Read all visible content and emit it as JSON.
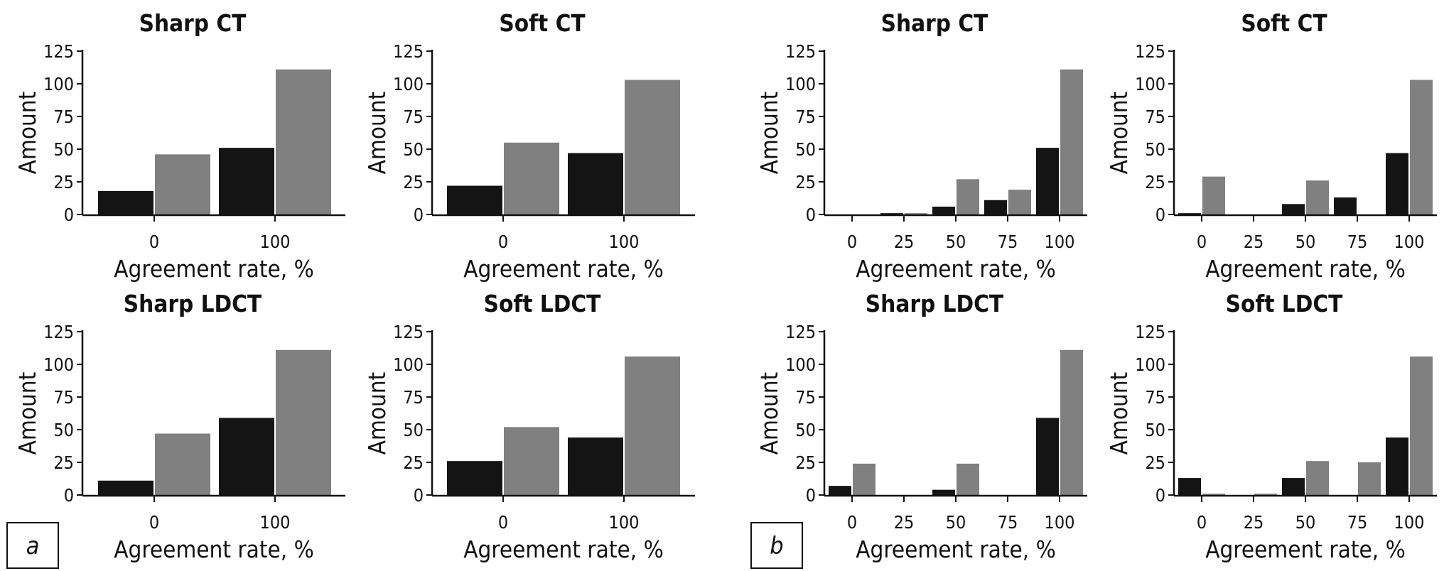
{
  "chart_data": [
    {
      "type": "bar",
      "title": "Sharp CT",
      "xlabel": "Agreement rate, %",
      "ylabel": "Amount",
      "categories": [
        "0",
        "100"
      ],
      "ylim": [
        0,
        125
      ],
      "yticks": [
        0,
        25,
        50,
        75,
        100,
        125
      ],
      "series": [
        {
          "color": "#141414",
          "values": [
            18,
            51
          ]
        },
        {
          "color": "#808080",
          "values": [
            46,
            111
          ]
        }
      ]
    },
    {
      "type": "bar",
      "title": "Soft CT",
      "xlabel": "Agreement rate, %",
      "ylabel": "Amount",
      "categories": [
        "0",
        "100"
      ],
      "ylim": [
        0,
        125
      ],
      "yticks": [
        0,
        25,
        50,
        75,
        100,
        125
      ],
      "series": [
        {
          "color": "#141414",
          "values": [
            22,
            47
          ]
        },
        {
          "color": "#808080",
          "values": [
            55,
            103
          ]
        }
      ]
    },
    {
      "type": "bar",
      "title": "Sharp CT",
      "xlabel": "Agreement rate, %",
      "ylabel": "Amount",
      "categories": [
        "0",
        "25",
        "50",
        "75",
        "100"
      ],
      "ylim": [
        0,
        125
      ],
      "yticks": [
        0,
        25,
        50,
        75,
        100,
        125
      ],
      "series": [
        {
          "color": "#141414",
          "values": [
            0,
            1,
            6,
            11,
            51
          ]
        },
        {
          "color": "#808080",
          "values": [
            0,
            1,
            27,
            19,
            111
          ]
        }
      ]
    },
    {
      "type": "bar",
      "title": "Soft CT",
      "xlabel": "Agreement rate, %",
      "ylabel": "Amount",
      "categories": [
        "0",
        "25",
        "50",
        "75",
        "100"
      ],
      "ylim": [
        0,
        125
      ],
      "yticks": [
        0,
        25,
        50,
        75,
        100,
        125
      ],
      "series": [
        {
          "color": "#141414",
          "values": [
            1,
            0,
            8,
            13,
            47
          ]
        },
        {
          "color": "#808080",
          "values": [
            29,
            0,
            26,
            0,
            103
          ]
        }
      ]
    },
    {
      "type": "bar",
      "title": "Sharp LDCT",
      "xlabel": "Agreement rate, %",
      "ylabel": "Amount",
      "categories": [
        "0",
        "100"
      ],
      "ylim": [
        0,
        125
      ],
      "yticks": [
        0,
        25,
        50,
        75,
        100,
        125
      ],
      "series": [
        {
          "color": "#141414",
          "values": [
            11,
            59
          ]
        },
        {
          "color": "#808080",
          "values": [
            47,
            111
          ]
        }
      ]
    },
    {
      "type": "bar",
      "title": "Soft LDCT",
      "xlabel": "Agreement rate, %",
      "ylabel": "Amount",
      "categories": [
        "0",
        "100"
      ],
      "ylim": [
        0,
        125
      ],
      "yticks": [
        0,
        25,
        50,
        75,
        100,
        125
      ],
      "series": [
        {
          "color": "#141414",
          "values": [
            26,
            44
          ]
        },
        {
          "color": "#808080",
          "values": [
            52,
            106
          ]
        }
      ]
    },
    {
      "type": "bar",
      "title": "Sharp LDCT",
      "xlabel": "Agreement rate, %",
      "ylabel": "Amount",
      "categories": [
        "0",
        "25",
        "50",
        "75",
        "100"
      ],
      "ylim": [
        0,
        125
      ],
      "yticks": [
        0,
        25,
        50,
        75,
        100,
        125
      ],
      "series": [
        {
          "color": "#141414",
          "values": [
            7,
            0,
            4,
            0,
            59
          ]
        },
        {
          "color": "#808080",
          "values": [
            24,
            0,
            24,
            0,
            111
          ]
        }
      ]
    },
    {
      "type": "bar",
      "title": "Soft LDCT",
      "xlabel": "Agreement rate, %",
      "ylabel": "Amount",
      "categories": [
        "0",
        "25",
        "50",
        "75",
        "100"
      ],
      "ylim": [
        0,
        125
      ],
      "yticks": [
        0,
        25,
        50,
        75,
        100,
        125
      ],
      "series": [
        {
          "color": "#141414",
          "values": [
            13,
            0,
            13,
            0,
            44
          ]
        },
        {
          "color": "#808080",
          "values": [
            1,
            1,
            26,
            25,
            106
          ]
        }
      ]
    }
  ],
  "panel_labels": [
    "a",
    "b"
  ]
}
